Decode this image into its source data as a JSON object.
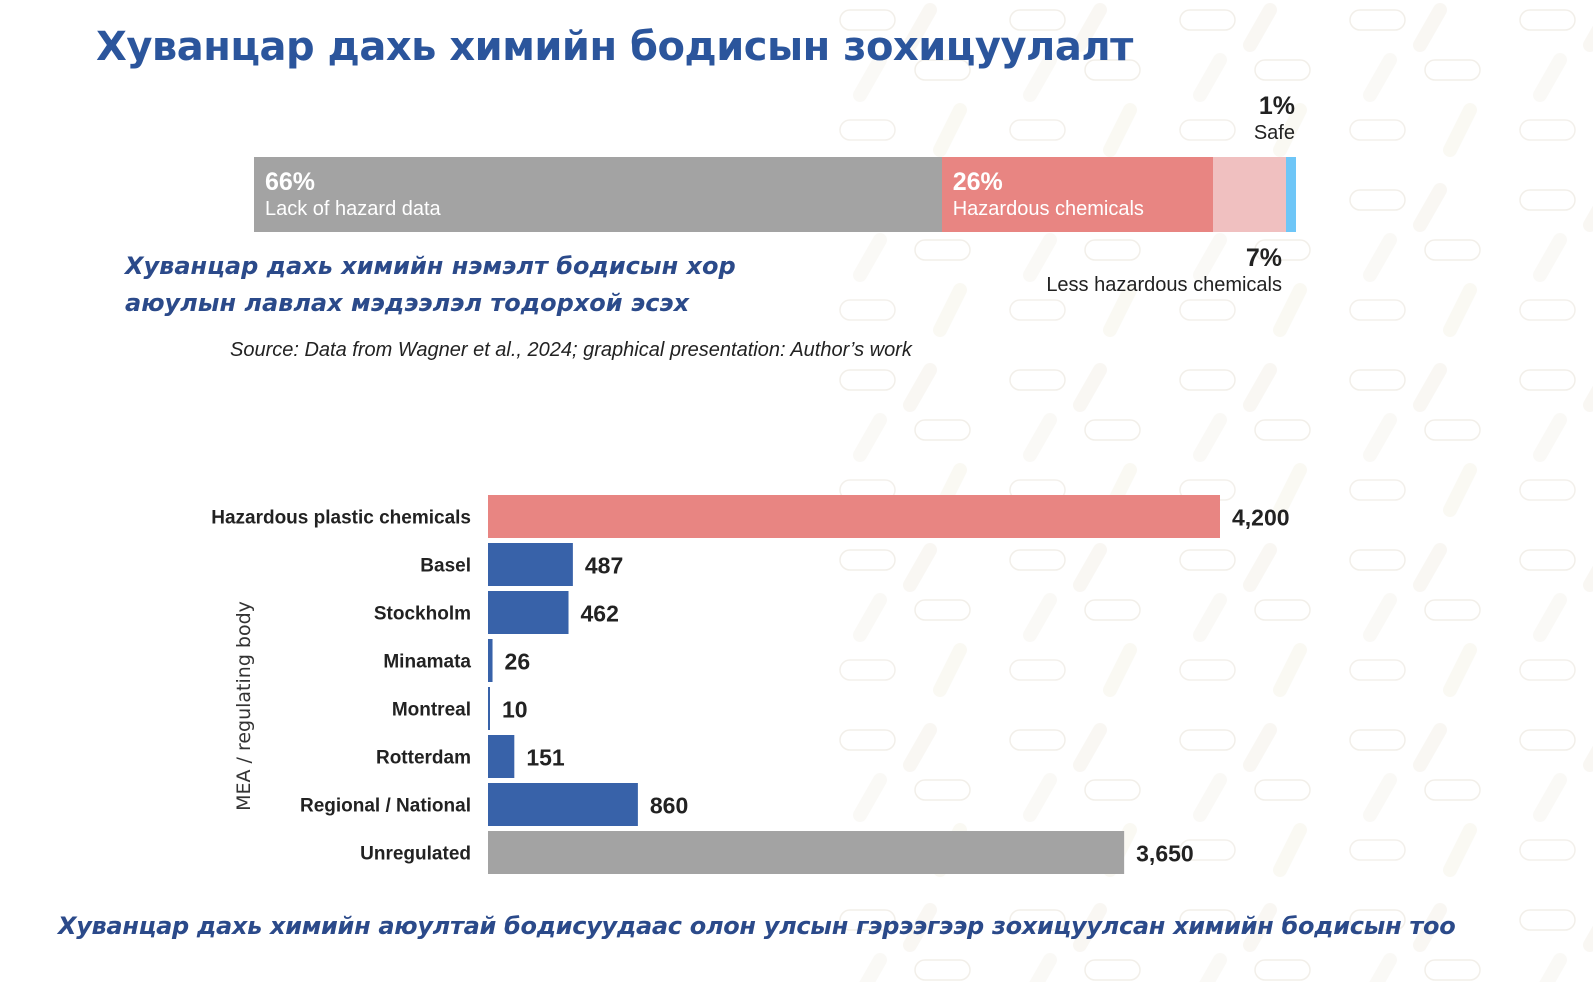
{
  "title": "Хуванцар дахь химийн бодисын зохицуулалт",
  "top_chart": {
    "subtitle_lines": [
      "Хуванцар дахь химийн нэмэлт бодисын хор",
      "аюулын лавлах мэдээлэл тодорхой эсэх"
    ],
    "source": "Source: Data from Wagner et al., 2024; graphical presentation: Author’s work"
  },
  "bottom_chart": {
    "caption": "Хуванцар дахь химийн аюултай бодисуудаас олон улсын гэрээгээр зохицуулсан химийн бодисын тоо"
  },
  "colors": {
    "title": "#2b559c",
    "gray": "#a3a3a3",
    "red": "#e88582",
    "pink": "#f0c0c0",
    "blue_light": "#6ec6f7",
    "blue": "#3862a9"
  },
  "chart_data": [
    {
      "type": "bar",
      "orientation": "horizontal-stacked",
      "title": "",
      "categories": [
        "Lack of hazard data",
        "Hazardous chemicals",
        "Less hazardous chemicals",
        "Safe"
      ],
      "values": [
        66,
        26,
        7,
        1
      ],
      "labels": [
        "66%",
        "26%",
        "7%",
        "1%"
      ],
      "unit": "%",
      "colors": [
        "#a3a3a3",
        "#e88582",
        "#f0c0c0",
        "#6ec6f7"
      ],
      "xlim": [
        0,
        100
      ]
    },
    {
      "type": "bar",
      "orientation": "horizontal",
      "ylabel": "MEA / regulating body",
      "xlabel": "",
      "categories": [
        "Hazardous plastic chemicals",
        "Basel",
        "Stockholm",
        "Minamata",
        "Montreal",
        "Rotterdam",
        "Regional / National",
        "Unregulated"
      ],
      "values": [
        4200,
        487,
        462,
        26,
        10,
        151,
        860,
        3650
      ],
      "value_labels": [
        "4,200",
        "487",
        "462",
        "26",
        "10",
        "151",
        "860",
        "3,650"
      ],
      "colors": [
        "#e88582",
        "#3862a9",
        "#3862a9",
        "#3862a9",
        "#3862a9",
        "#3862a9",
        "#3862a9",
        "#a3a3a3"
      ],
      "xlim": [
        0,
        4200
      ],
      "grid": false
    }
  ]
}
